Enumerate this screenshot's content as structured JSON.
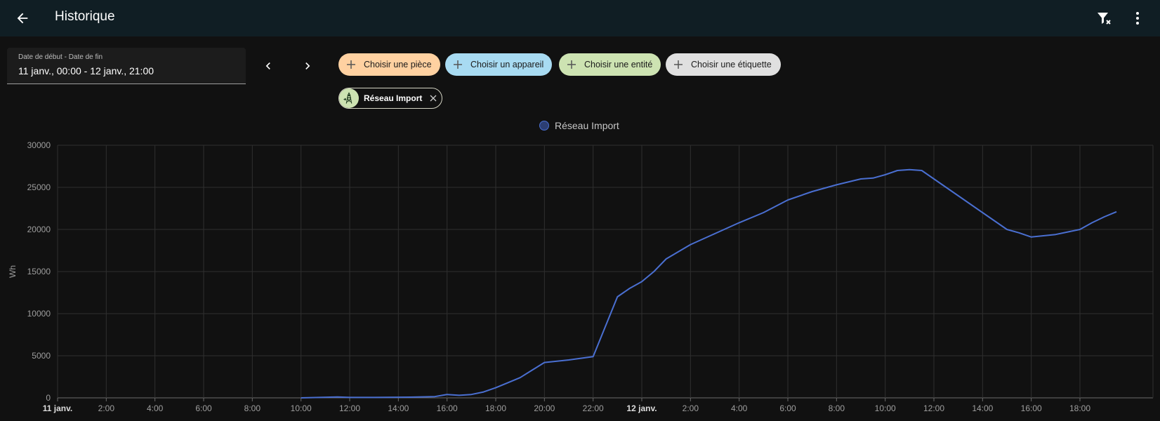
{
  "header": {
    "title": "Historique"
  },
  "icons": {
    "back": "arrow-left-icon",
    "filter_clear": "filter-remove-icon",
    "more": "dots-vertical-icon"
  },
  "date_picker": {
    "label": "Date de début - Date de fin",
    "value": "11 janv., 00:00 - 12 janv., 21:00"
  },
  "target_chips": [
    {
      "label": "Choisir une pièce",
      "color": "#ffd1a1"
    },
    {
      "label": "Choisir un appareil",
      "color": "#a8dbf2"
    },
    {
      "label": "Choisir une entité",
      "color": "#cde3b2"
    },
    {
      "label": "Choisir une étiquette",
      "color": "#e0e0e0"
    }
  ],
  "selected_entity": {
    "name": "Réseau Import",
    "icon": "transmission-tower-import-icon"
  },
  "chart_data": {
    "type": "line",
    "title": "",
    "legend": "top-center",
    "ylabel": "Wh",
    "ylim": [
      0,
      30000
    ],
    "yticks": [
      "0",
      "5000",
      "10000",
      "15000",
      "20000",
      "25000",
      "30000"
    ],
    "xlim": [
      "11 janv. 00:00",
      "12 janv. 21:00"
    ],
    "xticks": [
      {
        "label": "11 janv.",
        "bold": true
      },
      {
        "label": "2:00"
      },
      {
        "label": "4:00"
      },
      {
        "label": "6:00"
      },
      {
        "label": "8:00"
      },
      {
        "label": "10:00"
      },
      {
        "label": "12:00"
      },
      {
        "label": "14:00"
      },
      {
        "label": "16:00"
      },
      {
        "label": "18:00"
      },
      {
        "label": "20:00"
      },
      {
        "label": "22:00"
      },
      {
        "label": "12 janv.",
        "bold": true
      },
      {
        "label": "2:00"
      },
      {
        "label": "4:00"
      },
      {
        "label": "6:00"
      },
      {
        "label": "8:00"
      },
      {
        "label": "10:00"
      },
      {
        "label": "12:00"
      },
      {
        "label": "14:00"
      },
      {
        "label": "16:00"
      },
      {
        "label": "18:00"
      }
    ],
    "grid": true,
    "series": [
      {
        "name": "Réseau Import",
        "color": "#4a6fd1",
        "points": [
          [
            "11 janv. 10:00",
            0
          ],
          [
            "11 janv. 11:30",
            100
          ],
          [
            "11 janv. 12:00",
            50
          ],
          [
            "11 janv. 13:00",
            50
          ],
          [
            "11 janv. 14:30",
            80
          ],
          [
            "11 janv. 15:30",
            150
          ],
          [
            "11 janv. 16:00",
            400
          ],
          [
            "11 janv. 16:30",
            300
          ],
          [
            "11 janv. 17:00",
            400
          ],
          [
            "11 janv. 17:30",
            700
          ],
          [
            "11 janv. 18:00",
            1200
          ],
          [
            "11 janv. 18:30",
            1800
          ],
          [
            "11 janv. 19:00",
            2400
          ],
          [
            "11 janv. 19:30",
            3300
          ],
          [
            "11 janv. 20:00",
            4200
          ],
          [
            "11 janv. 21:00",
            4500
          ],
          [
            "11 janv. 22:00",
            4900
          ],
          [
            "11 janv. 23:00",
            12000
          ],
          [
            "11 janv. 23:30",
            13000
          ],
          [
            "12 janv. 00:00",
            13800
          ],
          [
            "12 janv. 00:30",
            15000
          ],
          [
            "12 janv. 01:00",
            16500
          ],
          [
            "12 janv. 02:00",
            18200
          ],
          [
            "12 janv. 03:00",
            19500
          ],
          [
            "12 janv. 04:00",
            20800
          ],
          [
            "12 janv. 05:00",
            22000
          ],
          [
            "12 janv. 06:00",
            23500
          ],
          [
            "12 janv. 07:00",
            24500
          ],
          [
            "12 janv. 08:00",
            25300
          ],
          [
            "12 janv. 09:00",
            26000
          ],
          [
            "12 janv. 09:30",
            26100
          ],
          [
            "12 janv. 10:00",
            26500
          ],
          [
            "12 janv. 10:30",
            27000
          ],
          [
            "12 janv. 11:00",
            27100
          ],
          [
            "12 janv. 11:30",
            27000
          ],
          [
            "12 janv. 12:00",
            26000
          ],
          [
            "12 janv. 13:00",
            24000
          ],
          [
            "12 janv. 14:00",
            22000
          ],
          [
            "12 janv. 15:00",
            20000
          ],
          [
            "12 janv. 15:30",
            19600
          ],
          [
            "12 janv. 16:00",
            19100
          ],
          [
            "12 janv. 17:00",
            19400
          ],
          [
            "12 janv. 18:00",
            20000
          ],
          [
            "12 janv. 18:30",
            20800
          ],
          [
            "12 janv. 19:00",
            21500
          ],
          [
            "12 janv. 19:30",
            22100
          ]
        ]
      }
    ]
  }
}
